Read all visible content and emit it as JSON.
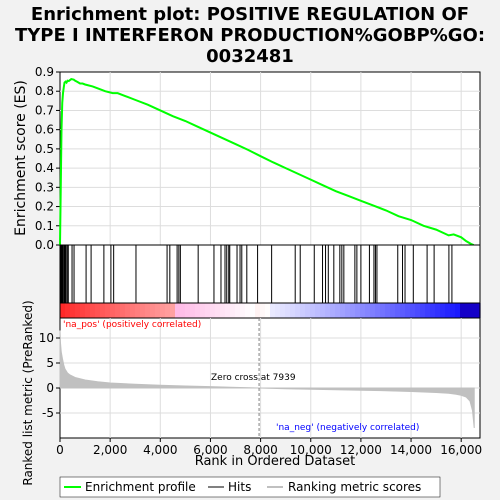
{
  "title_lines": [
    "Enrichment plot: POSITIVE REGULATION OF",
    "TYPE I INTERFERON PRODUCTION%GOBP%GO:",
    "0032481"
  ],
  "colors": {
    "background": "#f2f2f2",
    "enrichment_line": "#00ff00",
    "hit_line": "#000000",
    "ranking_fill": "#c0c0c0",
    "heat_left": "#ff0000",
    "heat_right": "#0000ff",
    "zero_line": "#808080"
  },
  "legend": {
    "enrichment": "Enrichment profile",
    "hits": "Hits",
    "ranking": "Ranking metric scores"
  },
  "labels": {
    "na_pos": "'na_pos' (positively correlated)",
    "na_neg": "'na_neg' (negatively correlated)",
    "zero_cross": "Zero cross at 7939"
  },
  "chart_data": [
    {
      "type": "line",
      "name": "enrichment",
      "title": "Enrichment plot: POSITIVE REGULATION OF TYPE I INTERFERON PRODUCTION%GOBP%GO: 0032481",
      "ylabel": "Enrichment score (ES)",
      "xlim": [
        0,
        16750
      ],
      "ylim": [
        0.0,
        0.9
      ],
      "yticks": [
        0.0,
        0.1,
        0.2,
        0.3,
        0.4,
        0.5,
        0.6,
        0.7,
        0.8,
        0.9
      ],
      "ytick_labels": [
        "0.0",
        "0.1",
        "0.2",
        "0.3",
        "0.4",
        "0.5",
        "0.6",
        "0.7",
        "0.8",
        "0.9"
      ],
      "grid": true,
      "series": [
        {
          "name": "Enrichment profile",
          "x": [
            0,
            30,
            60,
            90,
            120,
            150,
            180,
            220,
            260,
            300,
            350,
            400,
            450,
            500,
            550,
            600,
            700,
            800,
            900,
            1000,
            1300,
            1500,
            1800,
            2100,
            2300,
            2600,
            3000,
            3500,
            4000,
            4500,
            5000,
            5500,
            6000,
            6500,
            7000,
            7500,
            8000,
            8500,
            9000,
            9500,
            10000,
            10500,
            11000,
            11500,
            12000,
            12500,
            13000,
            13500,
            14000,
            14500,
            15000,
            15500,
            15700,
            16000,
            16200,
            16400,
            16500
          ],
          "y": [
            0.0,
            0.3,
            0.6,
            0.74,
            0.79,
            0.82,
            0.845,
            0.85,
            0.845,
            0.855,
            0.853,
            0.858,
            0.863,
            0.862,
            0.86,
            0.855,
            0.848,
            0.84,
            0.84,
            0.835,
            0.825,
            0.815,
            0.8,
            0.79,
            0.79,
            0.775,
            0.755,
            0.73,
            0.7,
            0.67,
            0.645,
            0.615,
            0.585,
            0.555,
            0.525,
            0.495,
            0.462,
            0.43,
            0.4,
            0.37,
            0.34,
            0.31,
            0.28,
            0.255,
            0.23,
            0.205,
            0.18,
            0.15,
            0.13,
            0.1,
            0.08,
            0.05,
            0.055,
            0.04,
            0.02,
            0.005,
            0.0
          ]
        }
      ]
    },
    {
      "type": "barcode",
      "name": "hits",
      "xlim": [
        0,
        16750
      ],
      "hits": [
        40,
        70,
        100,
        130,
        170,
        200,
        240,
        290,
        330,
        480,
        560,
        1040,
        1240,
        1750,
        2030,
        2140,
        3030,
        4270,
        4380,
        4670,
        4740,
        4800,
        5510,
        6140,
        6420,
        6580,
        6650,
        6730,
        6770,
        7060,
        7180,
        7250,
        7450,
        7880,
        8440,
        9380,
        9580,
        10140,
        10470,
        10590,
        10700,
        10920,
        11160,
        11240,
        11320,
        11760,
        11840,
        12000,
        12340,
        12520,
        12580,
        12640,
        13470,
        13660,
        13760,
        14090,
        14640,
        14920,
        15510,
        15630
      ]
    },
    {
      "type": "area",
      "name": "ranking",
      "ylabel": "Ranked list metric (PreRanked)",
      "xlabel": "Rank in Ordered Dataset",
      "xlim": [
        0,
        16750
      ],
      "ylim": [
        -10,
        14
      ],
      "yticks": [
        -5,
        0,
        5,
        10
      ],
      "ytick_labels": [
        "-5",
        "0",
        "5",
        "10"
      ],
      "xticks": [
        0,
        2000,
        4000,
        6000,
        8000,
        10000,
        12000,
        14000,
        16000
      ],
      "xtick_labels": [
        "0",
        "2,000",
        "4,000",
        "6,000",
        "8,000",
        "10,000",
        "12,000",
        "14,000",
        "16,000"
      ],
      "zero_cross": 7939,
      "x": [
        0,
        20,
        50,
        100,
        150,
        200,
        300,
        400,
        600,
        1000,
        1500,
        2000,
        3000,
        4000,
        5000,
        6000,
        7000,
        7939,
        9000,
        10000,
        11000,
        12000,
        13000,
        14000,
        14500,
        15000,
        15500,
        15800,
        16000,
        16200,
        16350,
        16450,
        16520
      ],
      "y": [
        11.5,
        9.0,
        7.2,
        5.8,
        4.6,
        3.8,
        3.0,
        2.6,
        2.1,
        1.6,
        1.25,
        1.0,
        0.75,
        0.55,
        0.4,
        0.28,
        0.12,
        0.0,
        -0.15,
        -0.25,
        -0.35,
        -0.45,
        -0.55,
        -0.7,
        -0.8,
        -0.9,
        -1.05,
        -1.25,
        -1.45,
        -1.8,
        -2.6,
        -4.5,
        -8.0
      ]
    }
  ]
}
